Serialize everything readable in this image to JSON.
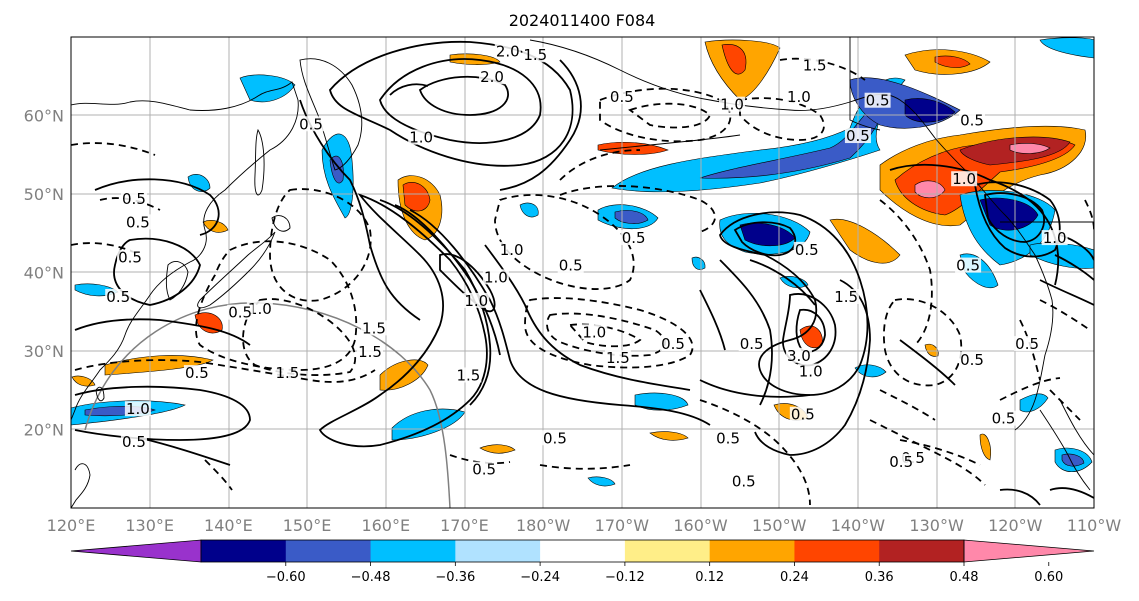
{
  "title": "2024011400 F084",
  "map": {
    "lon_labels": [
      "120°E",
      "130°E",
      "140°E",
      "150°E",
      "160°E",
      "170°E",
      "180°W",
      "170°W",
      "160°W",
      "150°W",
      "140°W",
      "130°W",
      "120°W",
      "110°W"
    ],
    "lat_labels": [
      "20°N",
      "30°N",
      "40°N",
      "50°N",
      "60°N"
    ],
    "lon_range": [
      120,
      250
    ],
    "lat_range": [
      10,
      70
    ],
    "grid": true
  },
  "colorbar": {
    "colors": [
      "#9932cc",
      "#00008b",
      "#3a5bc7",
      "#00bfff",
      "#b0e2ff",
      "#ffffff",
      "#ffee88",
      "#ffa500",
      "#ff4500",
      "#b22222",
      "#ff88aa"
    ],
    "tick_labels": [
      "−0.60",
      "−0.48",
      "−0.36",
      "−0.24",
      "−0.12",
      "0.12",
      "0.24",
      "0.36",
      "0.48",
      "0.60"
    ],
    "extend": "both"
  },
  "contour_labels": [
    {
      "text": "2.0",
      "lon": 175.5,
      "lat": 67.8
    },
    {
      "text": "1.5",
      "lon": 179.0,
      "lat": 67.3
    },
    {
      "text": "2.0",
      "lon": 173.5,
      "lat": 64.5
    },
    {
      "text": "0.5",
      "lon": 150.5,
      "lat": 58.5
    },
    {
      "text": "1.0",
      "lon": 164.5,
      "lat": 56.8
    },
    {
      "text": "0.5",
      "lon": 128.0,
      "lat": 49.0
    },
    {
      "text": "0.5",
      "lon": 128.5,
      "lat": 46.0
    },
    {
      "text": "0.5",
      "lon": 127.5,
      "lat": 41.5
    },
    {
      "text": "0.5",
      "lon": 126.0,
      "lat": 36.5
    },
    {
      "text": "1.0",
      "lon": 144.0,
      "lat": 35.0
    },
    {
      "text": "0.5",
      "lon": 141.5,
      "lat": 34.5
    },
    {
      "text": "1.5",
      "lon": 158.5,
      "lat": 32.5
    },
    {
      "text": "1.5",
      "lon": 158.0,
      "lat": 29.5
    },
    {
      "text": "0.5",
      "lon": 136.0,
      "lat": 26.8
    },
    {
      "text": "1.5",
      "lon": 147.5,
      "lat": 26.8
    },
    {
      "text": "1.0",
      "lon": 128.5,
      "lat": 22.2
    },
    {
      "text": "0.5",
      "lon": 128.0,
      "lat": 18.0
    },
    {
      "text": "1.0",
      "lon": 176.0,
      "lat": 42.5
    },
    {
      "text": "1.0",
      "lon": 174.0,
      "lat": 39.0
    },
    {
      "text": "1.0",
      "lon": 171.5,
      "lat": 36.0
    },
    {
      "text": "1.5",
      "lon": 170.5,
      "lat": 26.5
    },
    {
      "text": "0.5",
      "lon": 172.5,
      "lat": 14.5
    },
    {
      "text": "0.5",
      "lon": 183.5,
      "lat": 40.5
    },
    {
      "text": "0.5",
      "lon": 191.5,
      "lat": 44.0
    },
    {
      "text": "1.0",
      "lon": 186.5,
      "lat": 32.0
    },
    {
      "text": "0.5",
      "lon": 196.5,
      "lat": 30.5
    },
    {
      "text": "1.5",
      "lon": 189.5,
      "lat": 28.7
    },
    {
      "text": "0.5",
      "lon": 190.0,
      "lat": 62.0
    },
    {
      "text": "1.0",
      "lon": 204.0,
      "lat": 61.0
    },
    {
      "text": "1.0",
      "lon": 212.5,
      "lat": 62.0
    },
    {
      "text": "1.5",
      "lon": 214.5,
      "lat": 66.0
    },
    {
      "text": "0.5",
      "lon": 220.0,
      "lat": 57.0
    },
    {
      "text": "0.5",
      "lon": 222.5,
      "lat": 61.5
    },
    {
      "text": "0.5",
      "lon": 234.5,
      "lat": 59.0
    },
    {
      "text": "1.0",
      "lon": 233.5,
      "lat": 51.5
    },
    {
      "text": "0.5",
      "lon": 213.5,
      "lat": 42.5
    },
    {
      "text": "1.5",
      "lon": 218.5,
      "lat": 36.5
    },
    {
      "text": "0.5",
      "lon": 206.5,
      "lat": 30.5
    },
    {
      "text": "3.0",
      "lon": 212.5,
      "lat": 29.0
    },
    {
      "text": "1.0",
      "lon": 214.0,
      "lat": 27.0
    },
    {
      "text": "0.5",
      "lon": 203.5,
      "lat": 18.5
    },
    {
      "text": "0.5",
      "lon": 227.0,
      "lat": 16.0
    },
    {
      "text": "0.5",
      "lon": 213.0,
      "lat": 21.5
    },
    {
      "text": "0.5",
      "lon": 225.5,
      "lat": 15.5
    },
    {
      "text": "0.5",
      "lon": 238.5,
      "lat": 21.0
    },
    {
      "text": "0.5",
      "lon": 234.0,
      "lat": 40.5
    },
    {
      "text": "1.0",
      "lon": 245.0,
      "lat": 44.0
    },
    {
      "text": "0.5",
      "lon": 241.5,
      "lat": 30.5
    },
    {
      "text": "0.5",
      "lon": 205.5,
      "lat": 13.0
    },
    {
      "text": "0.5",
      "lon": 181.5,
      "lat": 18.5
    },
    {
      "text": "0.5",
      "lon": 234.5,
      "lat": 28.5
    }
  ]
}
